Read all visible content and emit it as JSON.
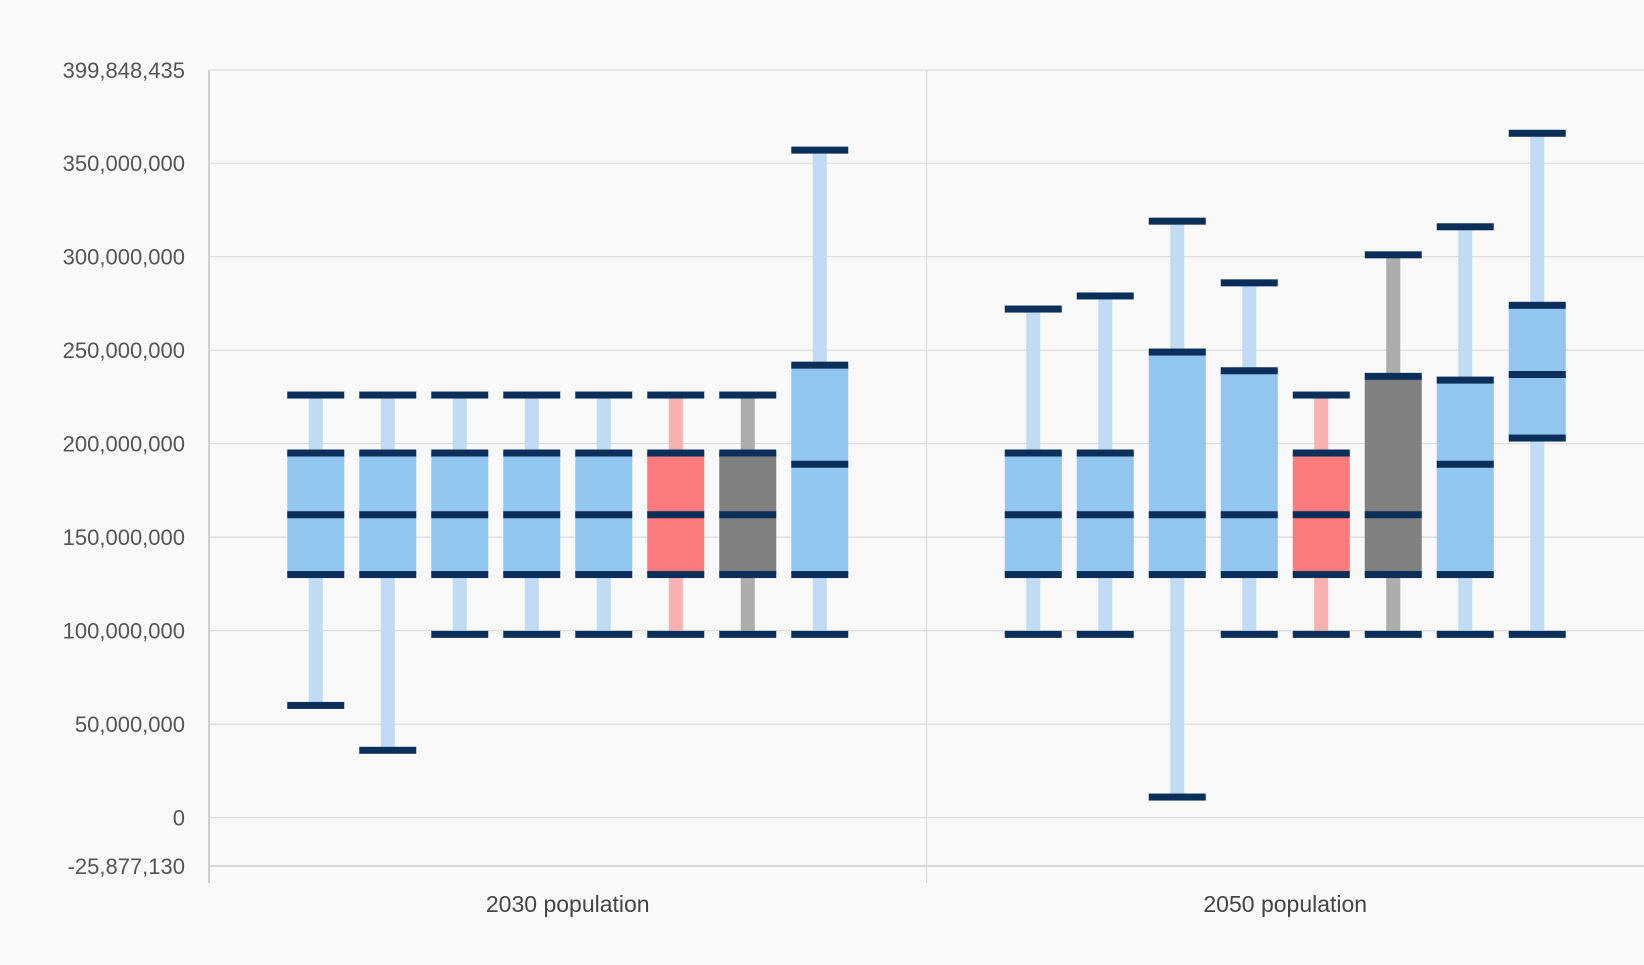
{
  "colors": {
    "background": "#f9f9fa",
    "grid": "#dcdcdc",
    "axis": "#c4c4c4",
    "cap": "#0b2f5b",
    "blue_box": "#93c6ef",
    "blue_whisker": "#bfdcf4",
    "red_box": "#f97b7b",
    "red_whisker": "#f9b0b0",
    "gray_box": "#808080",
    "gray_whisker": "#acacac"
  },
  "chart_data": {
    "type": "boxplot",
    "categories": [
      "2030 population",
      "2050 population"
    ],
    "y_ticks": [
      {
        "value": 399848435,
        "label": "399,848,435"
      },
      {
        "value": 350000000,
        "label": "350,000,000"
      },
      {
        "value": 300000000,
        "label": "300,000,000"
      },
      {
        "value": 250000000,
        "label": "250,000,000"
      },
      {
        "value": 200000000,
        "label": "200,000,000"
      },
      {
        "value": 150000000,
        "label": "150,000,000"
      },
      {
        "value": 100000000,
        "label": "100,000,000"
      },
      {
        "value": 50000000,
        "label": "50,000,000"
      },
      {
        "value": 0,
        "label": "0"
      },
      {
        "value": -25877130,
        "label": "-25,877,130"
      }
    ],
    "ylim": [
      -25877130,
      399848435
    ],
    "grid": true,
    "groups": [
      {
        "category": "2030 population",
        "boxes": [
          {
            "color": "blue",
            "min": 60000000,
            "q1": 130000000,
            "median": 162000000,
            "q3": 195000000,
            "max": 226000000
          },
          {
            "color": "blue",
            "min": 36000000,
            "q1": 130000000,
            "median": 162000000,
            "q3": 195000000,
            "max": 226000000
          },
          {
            "color": "blue",
            "min": 98000000,
            "q1": 130000000,
            "median": 162000000,
            "q3": 195000000,
            "max": 226000000
          },
          {
            "color": "blue",
            "min": 98000000,
            "q1": 130000000,
            "median": 162000000,
            "q3": 195000000,
            "max": 226000000
          },
          {
            "color": "blue",
            "min": 98000000,
            "q1": 130000000,
            "median": 162000000,
            "q3": 195000000,
            "max": 226000000
          },
          {
            "color": "red",
            "min": 98000000,
            "q1": 130000000,
            "median": 162000000,
            "q3": 195000000,
            "max": 226000000
          },
          {
            "color": "gray",
            "min": 98000000,
            "q1": 130000000,
            "median": 162000000,
            "q3": 195000000,
            "max": 226000000
          },
          {
            "color": "blue",
            "min": 98000000,
            "q1": 130000000,
            "median": 189000000,
            "q3": 242000000,
            "max": 357000000
          }
        ]
      },
      {
        "category": "2050 population",
        "boxes": [
          {
            "color": "blue",
            "min": 98000000,
            "q1": 130000000,
            "median": 162000000,
            "q3": 195000000,
            "max": 272000000
          },
          {
            "color": "blue",
            "min": 98000000,
            "q1": 130000000,
            "median": 162000000,
            "q3": 195000000,
            "max": 279000000
          },
          {
            "color": "blue",
            "min": 11000000,
            "q1": 130000000,
            "median": 162000000,
            "q3": 249000000,
            "max": 319000000
          },
          {
            "color": "blue",
            "min": 98000000,
            "q1": 130000000,
            "median": 162000000,
            "q3": 239000000,
            "max": 286000000
          },
          {
            "color": "red",
            "min": 98000000,
            "q1": 130000000,
            "median": 162000000,
            "q3": 195000000,
            "max": 226000000
          },
          {
            "color": "gray",
            "min": 98000000,
            "q1": 130000000,
            "median": 162000000,
            "q3": 236000000,
            "max": 301000000
          },
          {
            "color": "blue",
            "min": 98000000,
            "q1": 130000000,
            "median": 189000000,
            "q3": 234000000,
            "max": 316000000
          },
          {
            "color": "blue",
            "min": 98000000,
            "q1": 203000000,
            "median": 237000000,
            "q3": 274000000,
            "max": 366000000
          }
        ]
      }
    ]
  }
}
